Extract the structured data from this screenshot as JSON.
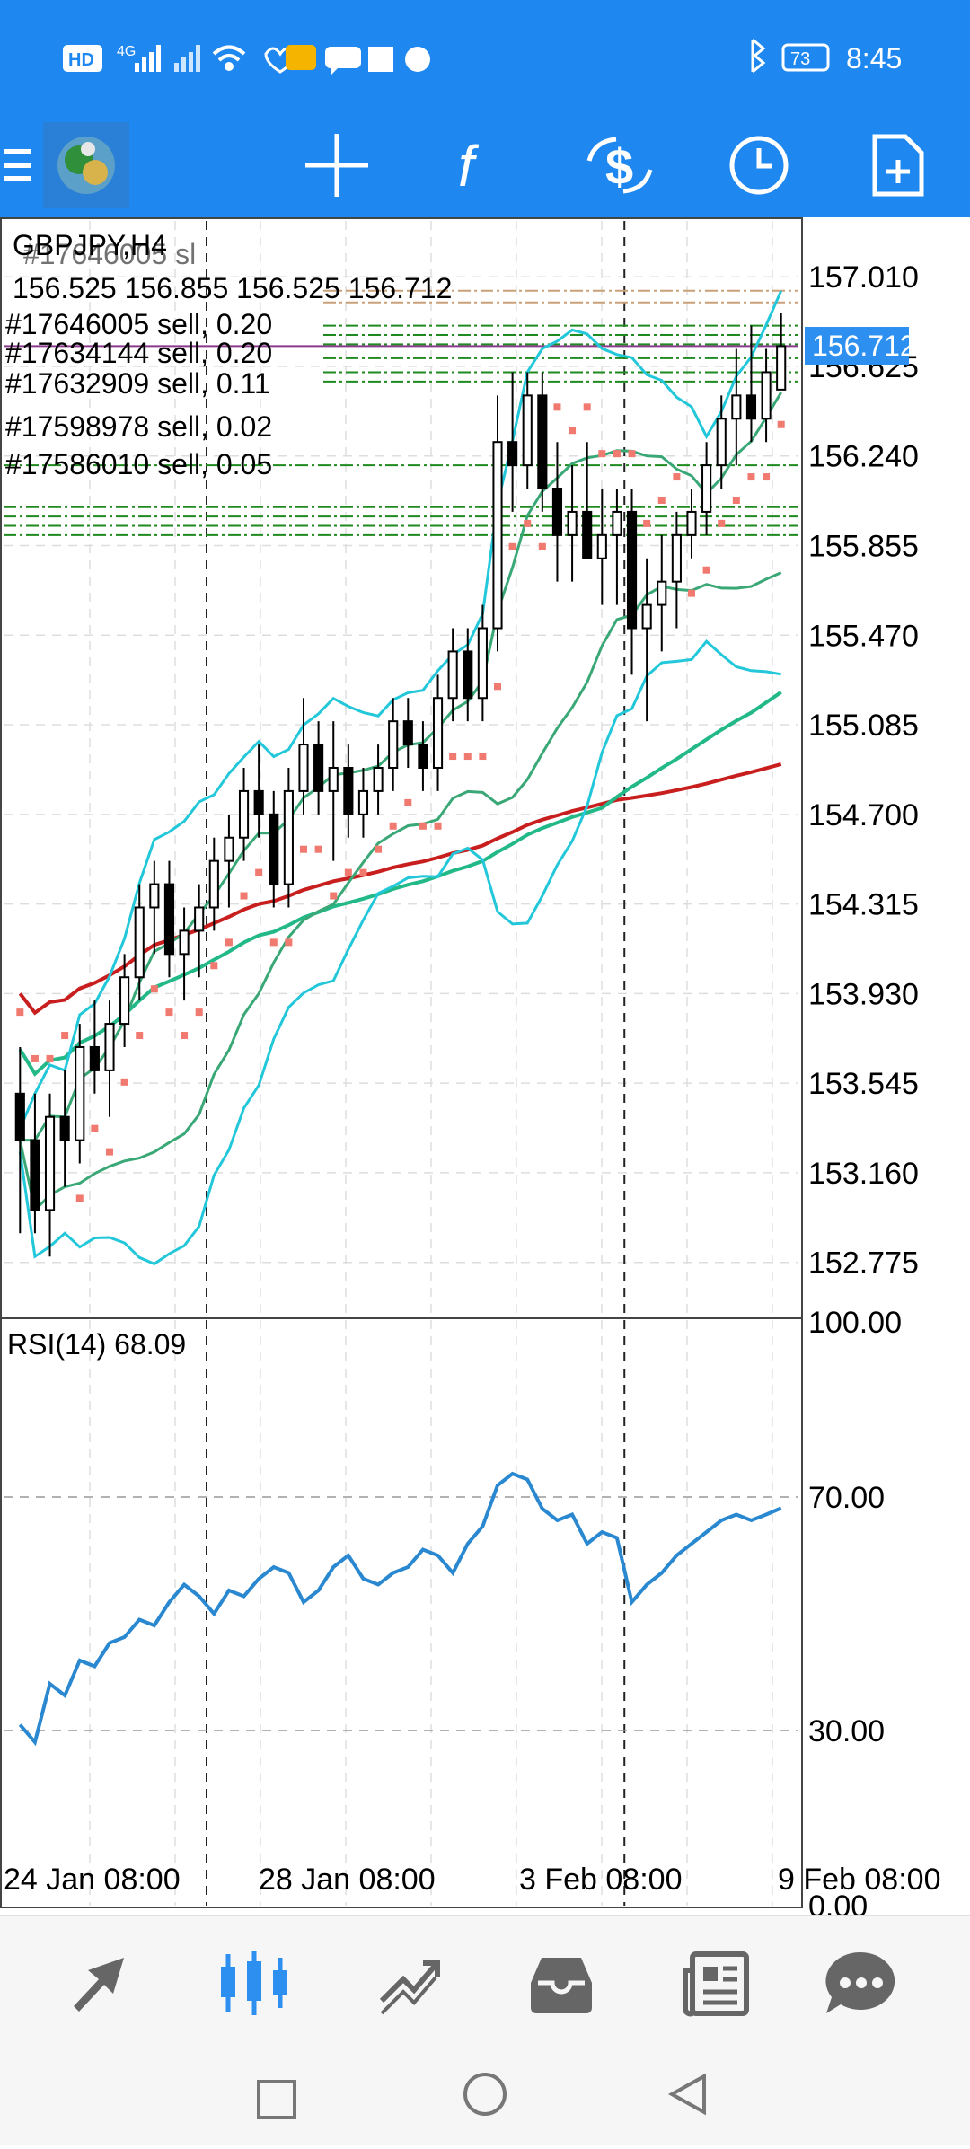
{
  "status": {
    "time": "8:45",
    "battery": "73",
    "network": "4G",
    "hd": "HD"
  },
  "toolbar": {
    "icons": [
      "menu-icon",
      "app-logo",
      "crosshair-icon",
      "indicators-icon",
      "trade-icon",
      "period-icon",
      "template-icon"
    ]
  },
  "chart": {
    "symbol_title": "GBPJPY,H4",
    "ohlc": "156.525 156.855 156.525 156.712",
    "overlap_text": "#17646005 sl",
    "orders": [
      {
        "label": "#17646005 sell, 0.20"
      },
      {
        "label": "#17634144 sell, 0.20"
      },
      {
        "label": "#17632909 sell, 0.11"
      },
      {
        "label": "#17598978 sell, 0.02"
      },
      {
        "label": "#17586010 sell, 0.05"
      }
    ],
    "current_price": "156.712",
    "price_axis": [
      "157.010",
      "156.625",
      "156.240",
      "155.855",
      "155.470",
      "155.085",
      "154.700",
      "154.315",
      "153.930",
      "153.545",
      "153.160",
      "152.775"
    ],
    "rsi_label": "RSI(14) 68.09",
    "rsi_axis": [
      "100.00",
      "70.00",
      "30.00",
      "0.00"
    ],
    "time_axis": [
      "24 Jan 08:00",
      "28 Jan 08:00",
      "3 Feb 08:00",
      "9 Feb 08:00"
    ],
    "colors": {
      "bollinger": "#22c7d9",
      "envelope": "#3aa876",
      "ma_green": "#22b888",
      "ma_red": "#c81e1e",
      "sar": "#f07a70",
      "rsi": "#2a88d0",
      "order_line": "#1f8a1f",
      "price_tag": "#2d8ff0"
    }
  },
  "chart_data": {
    "type": "candlestick",
    "title": "GBPJPY,H4",
    "ylim": [
      152.55,
      157.25
    ],
    "rsi_ylim": [
      0,
      100
    ],
    "candles": [
      [
        153.5,
        153.7,
        152.9,
        153.3
      ],
      [
        153.3,
        153.5,
        152.9,
        153.0
      ],
      [
        153.0,
        153.5,
        152.8,
        153.4
      ],
      [
        153.4,
        153.6,
        153.1,
        153.3
      ],
      [
        153.3,
        153.8,
        153.2,
        153.7
      ],
      [
        153.7,
        153.9,
        153.5,
        153.6
      ],
      [
        153.6,
        153.9,
        153.4,
        153.8
      ],
      [
        153.8,
        154.1,
        153.7,
        154.0
      ],
      [
        154.0,
        154.4,
        153.9,
        154.3
      ],
      [
        154.3,
        154.5,
        154.1,
        154.4
      ],
      [
        154.4,
        154.5,
        154.0,
        154.1
      ],
      [
        154.1,
        154.3,
        153.9,
        154.2
      ],
      [
        154.2,
        154.4,
        154.0,
        154.3
      ],
      [
        154.3,
        154.6,
        154.2,
        154.5
      ],
      [
        154.5,
        154.7,
        154.3,
        154.6
      ],
      [
        154.6,
        154.9,
        154.5,
        154.8
      ],
      [
        154.8,
        155.0,
        154.6,
        154.7
      ],
      [
        154.7,
        154.8,
        154.3,
        154.4
      ],
      [
        154.4,
        154.9,
        154.3,
        154.8
      ],
      [
        154.8,
        155.2,
        154.7,
        155.0
      ],
      [
        155.0,
        155.1,
        154.7,
        154.8
      ],
      [
        154.8,
        155.1,
        154.5,
        154.9
      ],
      [
        154.9,
        155.0,
        154.6,
        154.7
      ],
      [
        154.7,
        154.9,
        154.6,
        154.8
      ],
      [
        154.8,
        155.0,
        154.7,
        154.9
      ],
      [
        154.9,
        155.2,
        154.8,
        155.1
      ],
      [
        155.1,
        155.2,
        154.9,
        155.0
      ],
      [
        155.0,
        155.1,
        154.8,
        154.9
      ],
      [
        154.9,
        155.3,
        154.8,
        155.2
      ],
      [
        155.2,
        155.5,
        155.1,
        155.4
      ],
      [
        155.4,
        155.5,
        155.1,
        155.2
      ],
      [
        155.2,
        155.6,
        155.1,
        155.5
      ],
      [
        155.5,
        156.5,
        155.4,
        156.3
      ],
      [
        156.3,
        156.6,
        156.0,
        156.2
      ],
      [
        156.2,
        156.6,
        156.1,
        156.5
      ],
      [
        156.5,
        156.6,
        156.0,
        156.1
      ],
      [
        156.1,
        156.3,
        155.7,
        155.9
      ],
      [
        155.9,
        156.2,
        155.7,
        156.0
      ],
      [
        156.0,
        156.3,
        155.8,
        155.8
      ],
      [
        155.8,
        156.1,
        155.6,
        155.9
      ],
      [
        155.9,
        156.1,
        155.6,
        156.0
      ],
      [
        156.0,
        156.1,
        155.3,
        155.5
      ],
      [
        155.5,
        155.8,
        155.1,
        155.6
      ],
      [
        155.6,
        155.9,
        155.4,
        155.7
      ],
      [
        155.7,
        156.0,
        155.5,
        155.9
      ],
      [
        155.9,
        156.1,
        155.8,
        156.0
      ],
      [
        156.0,
        156.3,
        155.9,
        156.2
      ],
      [
        156.2,
        156.5,
        156.1,
        156.4
      ],
      [
        156.4,
        156.7,
        156.2,
        156.5
      ],
      [
        156.5,
        156.8,
        156.3,
        156.4
      ],
      [
        156.4,
        156.7,
        156.3,
        156.6
      ],
      [
        156.525,
        156.855,
        156.525,
        156.712
      ]
    ],
    "rsi": [
      31,
      28,
      38,
      36,
      42,
      41,
      45,
      46,
      49,
      48,
      52,
      55,
      53,
      50,
      54,
      53,
      56,
      58,
      57,
      52,
      54,
      58,
      60,
      56,
      55,
      57,
      58,
      61,
      60,
      57,
      62,
      65,
      72,
      74,
      73,
      68,
      66,
      67,
      62,
      64,
      63,
      52,
      55,
      57,
      60,
      62,
      64,
      66,
      67,
      66,
      67,
      68.09
    ]
  }
}
